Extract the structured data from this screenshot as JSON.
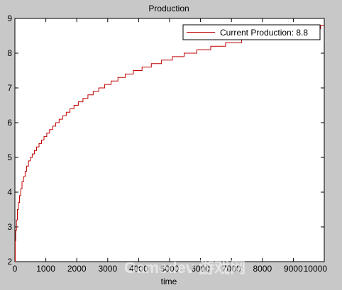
{
  "chart_data": {
    "type": "line",
    "title": "Production",
    "xlabel": "time",
    "ylabel": "",
    "xlim": [
      0,
      10000
    ],
    "ylim": [
      2,
      9
    ],
    "xticks": [
      0,
      1000,
      2000,
      3000,
      4000,
      5000,
      6000,
      7000,
      8000,
      9000,
      10000
    ],
    "yticks": [
      2,
      3,
      4,
      5,
      6,
      7,
      8,
      9
    ],
    "grid": false,
    "legend_position": "top-right",
    "series": [
      {
        "name": "Current Production: 8.8",
        "color": "#c00000",
        "style": "step",
        "x": [
          0,
          10,
          25,
          50,
          80,
          110,
          150,
          190,
          230,
          280,
          330,
          380,
          440,
          500,
          560,
          630,
          700,
          780,
          860,
          940,
          1030,
          1120,
          1220,
          1320,
          1430,
          1540,
          1660,
          1780,
          1910,
          2050,
          2200,
          2360,
          2530,
          2710,
          2900,
          3110,
          3330,
          3570,
          3830,
          4110,
          4410,
          4740,
          5090,
          5470,
          5880,
          6330,
          6810,
          7330,
          7900,
          8510,
          9170,
          9880,
          10000
        ],
        "y": [
          2.0,
          2.6,
          2.9,
          3.2,
          3.5,
          3.7,
          3.9,
          4.1,
          4.3,
          4.45,
          4.6,
          4.75,
          4.9,
          5.0,
          5.1,
          5.2,
          5.3,
          5.4,
          5.5,
          5.6,
          5.7,
          5.8,
          5.9,
          6.0,
          6.1,
          6.2,
          6.3,
          6.4,
          6.5,
          6.6,
          6.7,
          6.8,
          6.9,
          7.0,
          7.1,
          7.2,
          7.3,
          7.4,
          7.5,
          7.6,
          7.7,
          7.8,
          7.9,
          8.0,
          8.1,
          8.2,
          8.3,
          8.4,
          8.5,
          8.6,
          8.7,
          8.8,
          8.8
        ]
      }
    ]
  },
  "watermark": "Gamedev 游戏网"
}
